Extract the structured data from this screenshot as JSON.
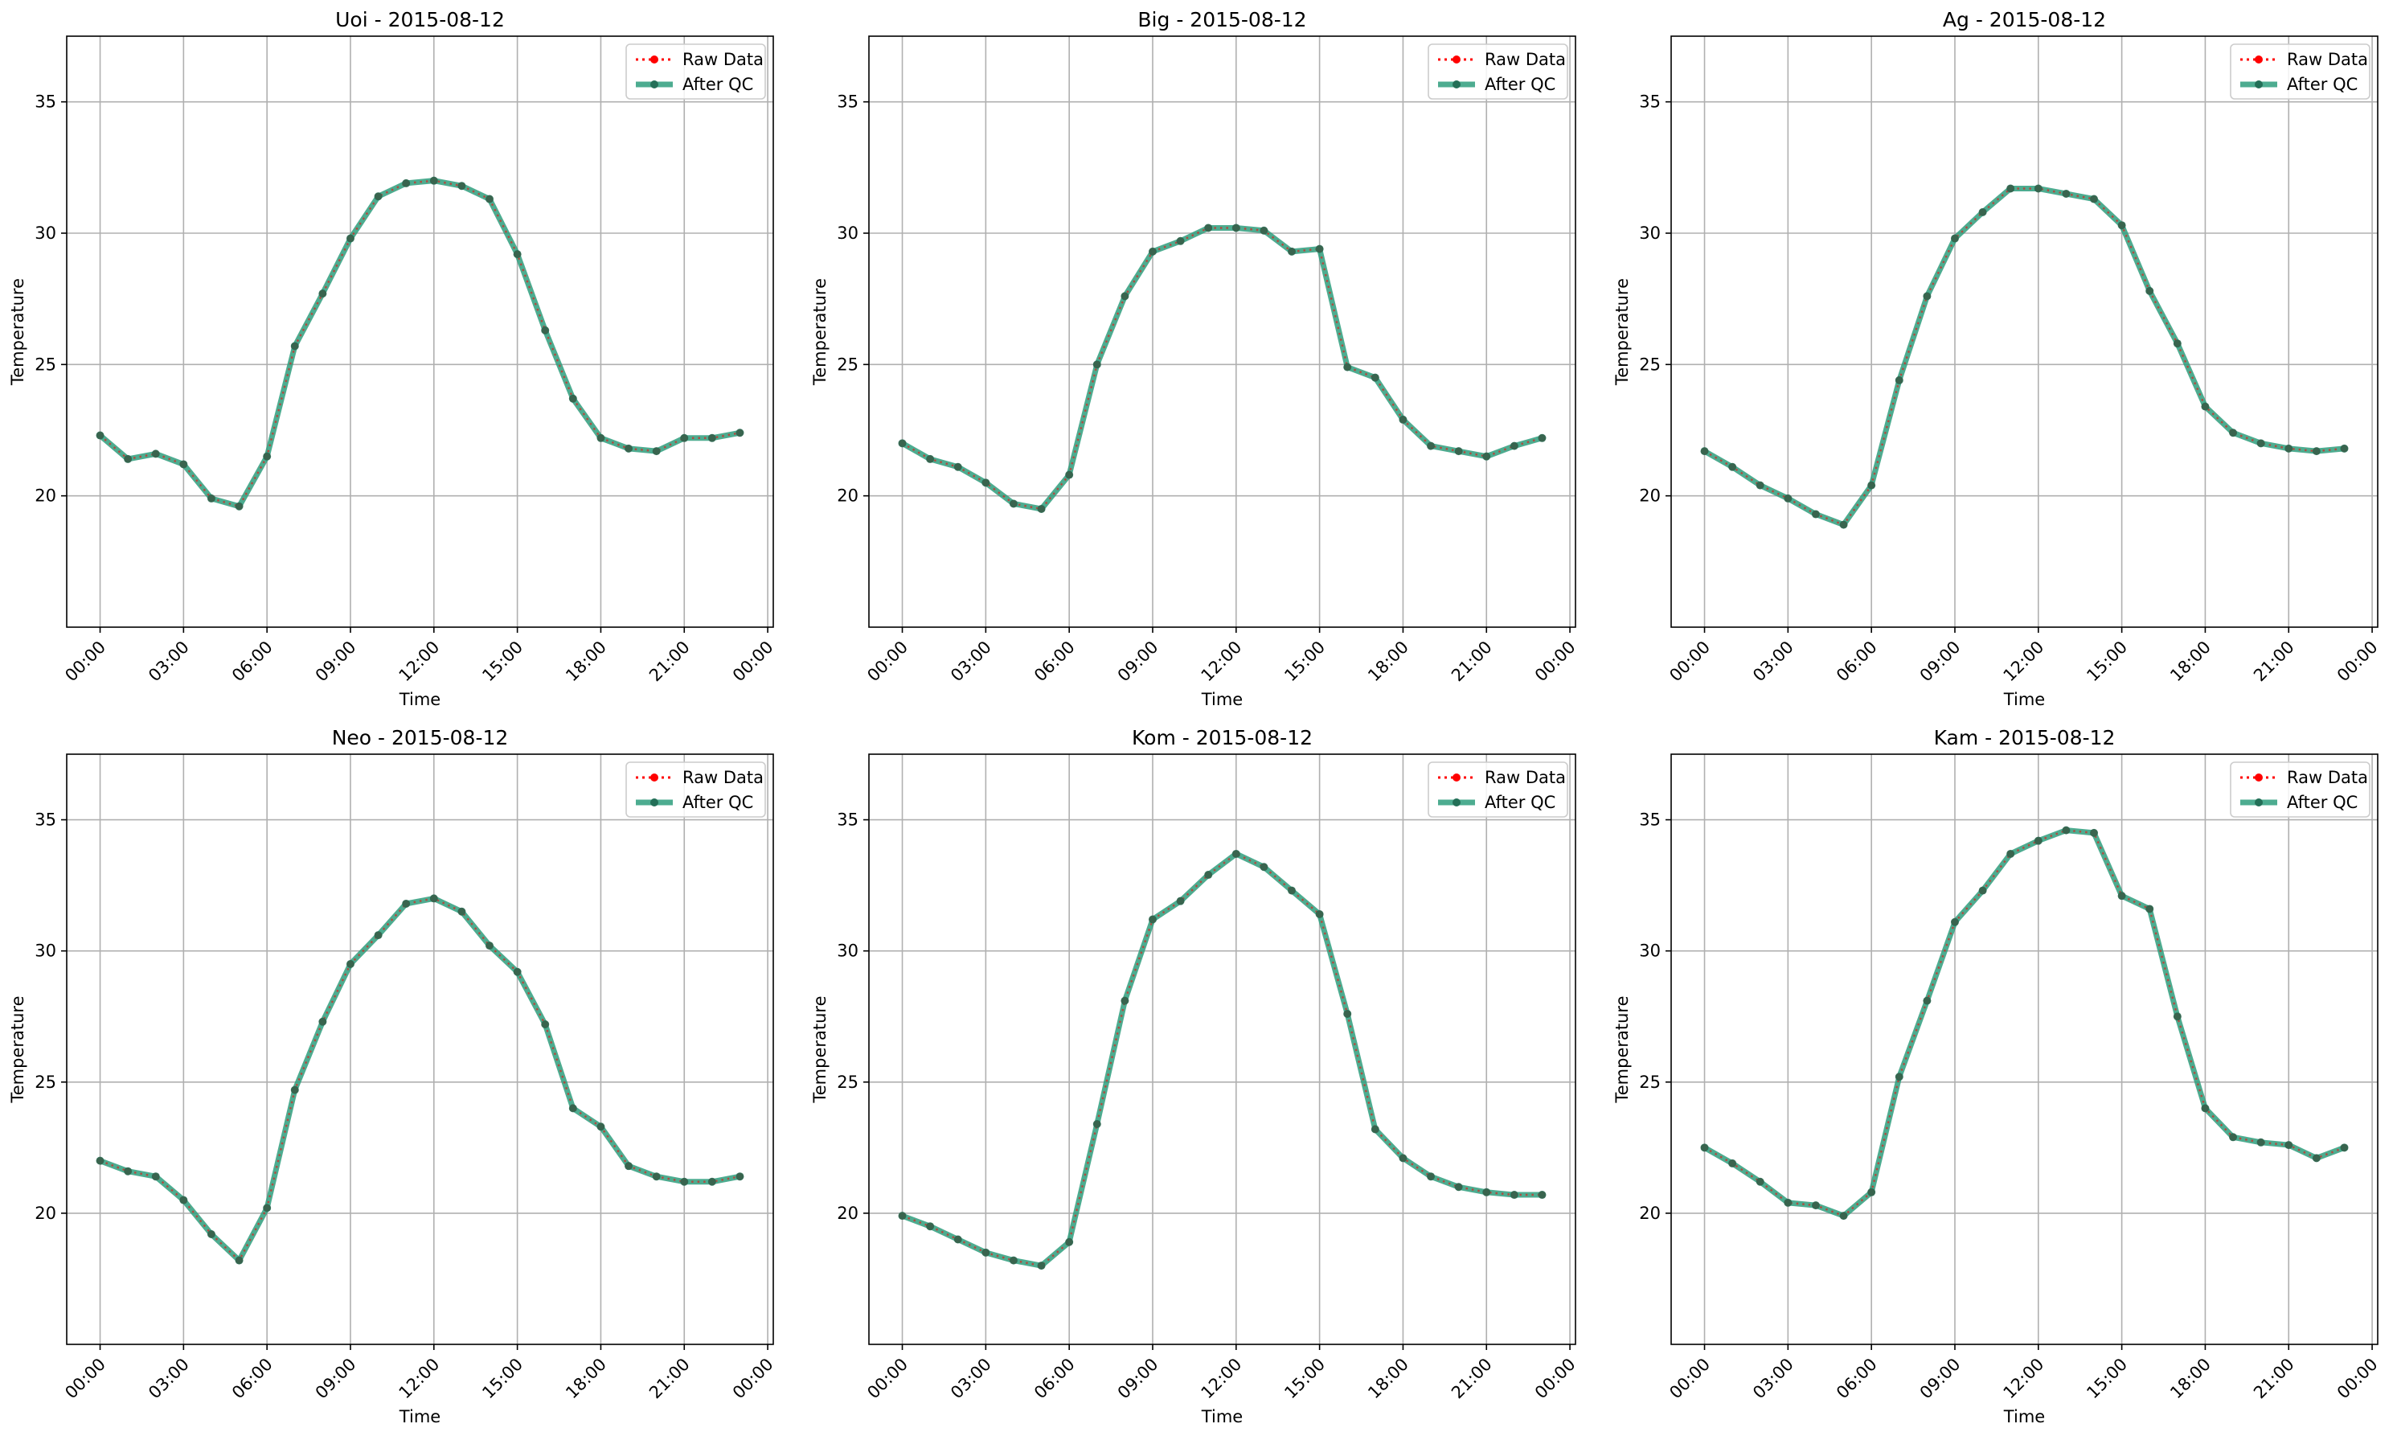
{
  "chart_data": [
    {
      "type": "line",
      "title": "Uoi - 2015-08-12",
      "xlabel": "Time",
      "ylabel": "Temperature",
      "ylim": [
        15.0,
        37.5
      ],
      "yticks": [
        20,
        25,
        30,
        35
      ],
      "xticks": [
        "00:00",
        "03:00",
        "06:00",
        "09:00",
        "12:00",
        "15:00",
        "18:00",
        "21:00",
        "00:00"
      ],
      "grid": true,
      "legend_position": "top-right",
      "x": [
        "00:00",
        "01:00",
        "02:00",
        "03:00",
        "04:00",
        "05:00",
        "06:00",
        "07:00",
        "08:00",
        "09:00",
        "10:00",
        "11:00",
        "12:00",
        "13:00",
        "14:00",
        "15:00",
        "16:00",
        "17:00",
        "18:00",
        "19:00",
        "20:00",
        "21:00",
        "22:00",
        "23:00"
      ],
      "series": [
        {
          "name": "Raw Data",
          "color": "#ff0000",
          "values": [
            22.3,
            21.4,
            21.6,
            21.2,
            19.9,
            19.6,
            21.5,
            25.7,
            27.7,
            29.8,
            31.4,
            31.9,
            32.0,
            31.8,
            31.3,
            29.2,
            26.3,
            23.7,
            22.2,
            21.8,
            21.7,
            22.2,
            22.2,
            22.4
          ]
        },
        {
          "name": "After QC",
          "color": "#2e9e7d",
          "values": [
            22.3,
            21.4,
            21.6,
            21.2,
            19.9,
            19.6,
            21.5,
            25.7,
            27.7,
            29.8,
            31.4,
            31.9,
            32.0,
            31.8,
            31.3,
            29.2,
            26.3,
            23.7,
            22.2,
            21.8,
            21.7,
            22.2,
            22.2,
            22.4
          ]
        }
      ]
    },
    {
      "type": "line",
      "title": "Big - 2015-08-12",
      "xlabel": "Time",
      "ylabel": "Temperature",
      "ylim": [
        15.0,
        37.5
      ],
      "yticks": [
        20,
        25,
        30,
        35
      ],
      "xticks": [
        "00:00",
        "03:00",
        "06:00",
        "09:00",
        "12:00",
        "15:00",
        "18:00",
        "21:00",
        "00:00"
      ],
      "grid": true,
      "legend_position": "top-right",
      "x": [
        "00:00",
        "01:00",
        "02:00",
        "03:00",
        "04:00",
        "05:00",
        "06:00",
        "07:00",
        "08:00",
        "09:00",
        "10:00",
        "11:00",
        "12:00",
        "13:00",
        "14:00",
        "15:00",
        "16:00",
        "17:00",
        "18:00",
        "19:00",
        "20:00",
        "21:00",
        "22:00",
        "23:00"
      ],
      "series": [
        {
          "name": "Raw Data",
          "color": "#ff0000",
          "values": [
            22.0,
            21.4,
            21.1,
            20.5,
            19.7,
            19.5,
            20.8,
            25.0,
            27.6,
            29.3,
            29.7,
            30.2,
            30.2,
            30.1,
            29.3,
            29.4,
            24.9,
            24.5,
            22.9,
            21.9,
            21.7,
            21.5,
            21.9,
            22.2
          ]
        },
        {
          "name": "After QC",
          "color": "#2e9e7d",
          "values": [
            22.0,
            21.4,
            21.1,
            20.5,
            19.7,
            19.5,
            20.8,
            25.0,
            27.6,
            29.3,
            29.7,
            30.2,
            30.2,
            30.1,
            29.3,
            29.4,
            24.9,
            24.5,
            22.9,
            21.9,
            21.7,
            21.5,
            21.9,
            22.2
          ]
        }
      ]
    },
    {
      "type": "line",
      "title": "Ag - 2015-08-12",
      "xlabel": "Time",
      "ylabel": "Temperature",
      "ylim": [
        15.0,
        37.5
      ],
      "yticks": [
        20,
        25,
        30,
        35
      ],
      "xticks": [
        "00:00",
        "03:00",
        "06:00",
        "09:00",
        "12:00",
        "15:00",
        "18:00",
        "21:00",
        "00:00"
      ],
      "grid": true,
      "legend_position": "top-right",
      "x": [
        "00:00",
        "01:00",
        "02:00",
        "03:00",
        "04:00",
        "05:00",
        "06:00",
        "07:00",
        "08:00",
        "09:00",
        "10:00",
        "11:00",
        "12:00",
        "13:00",
        "14:00",
        "15:00",
        "16:00",
        "17:00",
        "18:00",
        "19:00",
        "20:00",
        "21:00",
        "22:00",
        "23:00"
      ],
      "series": [
        {
          "name": "Raw Data",
          "color": "#ff0000",
          "values": [
            21.7,
            21.1,
            20.4,
            19.9,
            19.3,
            18.9,
            20.4,
            24.4,
            27.6,
            29.8,
            30.8,
            31.7,
            31.7,
            31.5,
            31.3,
            30.3,
            27.8,
            25.8,
            23.4,
            22.4,
            22.0,
            21.8,
            21.7,
            21.8
          ]
        },
        {
          "name": "After QC",
          "color": "#2e9e7d",
          "values": [
            21.7,
            21.1,
            20.4,
            19.9,
            19.3,
            18.9,
            20.4,
            24.4,
            27.6,
            29.8,
            30.8,
            31.7,
            31.7,
            31.5,
            31.3,
            30.3,
            27.8,
            25.8,
            23.4,
            22.4,
            22.0,
            21.8,
            21.7,
            21.8
          ]
        }
      ]
    },
    {
      "type": "line",
      "title": "Neo - 2015-08-12",
      "xlabel": "Time",
      "ylabel": "Temperature",
      "ylim": [
        15.0,
        37.5
      ],
      "yticks": [
        20,
        25,
        30,
        35
      ],
      "xticks": [
        "00:00",
        "03:00",
        "06:00",
        "09:00",
        "12:00",
        "15:00",
        "18:00",
        "21:00",
        "00:00"
      ],
      "grid": true,
      "legend_position": "top-right",
      "x": [
        "00:00",
        "01:00",
        "02:00",
        "03:00",
        "04:00",
        "05:00",
        "06:00",
        "07:00",
        "08:00",
        "09:00",
        "10:00",
        "11:00",
        "12:00",
        "13:00",
        "14:00",
        "15:00",
        "16:00",
        "17:00",
        "18:00",
        "19:00",
        "20:00",
        "21:00",
        "22:00",
        "23:00"
      ],
      "series": [
        {
          "name": "Raw Data",
          "color": "#ff0000",
          "values": [
            22.0,
            21.6,
            21.4,
            20.5,
            19.2,
            18.2,
            20.2,
            24.7,
            27.3,
            29.5,
            30.6,
            31.8,
            32.0,
            31.5,
            30.2,
            29.2,
            27.2,
            24.0,
            23.3,
            21.8,
            21.4,
            21.2,
            21.2,
            21.4
          ]
        },
        {
          "name": "After QC",
          "color": "#2e9e7d",
          "values": [
            22.0,
            21.6,
            21.4,
            20.5,
            19.2,
            18.2,
            20.2,
            24.7,
            27.3,
            29.5,
            30.6,
            31.8,
            32.0,
            31.5,
            30.2,
            29.2,
            27.2,
            24.0,
            23.3,
            21.8,
            21.4,
            21.2,
            21.2,
            21.4
          ]
        }
      ]
    },
    {
      "type": "line",
      "title": "Kom - 2015-08-12",
      "xlabel": "Time",
      "ylabel": "Temperature",
      "ylim": [
        15.0,
        37.5
      ],
      "yticks": [
        20,
        25,
        30,
        35
      ],
      "xticks": [
        "00:00",
        "03:00",
        "06:00",
        "09:00",
        "12:00",
        "15:00",
        "18:00",
        "21:00",
        "00:00"
      ],
      "grid": true,
      "legend_position": "top-right",
      "x": [
        "00:00",
        "01:00",
        "02:00",
        "03:00",
        "04:00",
        "05:00",
        "06:00",
        "07:00",
        "08:00",
        "09:00",
        "10:00",
        "11:00",
        "12:00",
        "13:00",
        "14:00",
        "15:00",
        "16:00",
        "17:00",
        "18:00",
        "19:00",
        "20:00",
        "21:00",
        "22:00",
        "23:00"
      ],
      "series": [
        {
          "name": "Raw Data",
          "color": "#ff0000",
          "values": [
            19.9,
            19.5,
            19.0,
            18.5,
            18.2,
            18.0,
            18.9,
            23.4,
            28.1,
            31.2,
            31.9,
            32.9,
            33.7,
            33.2,
            32.3,
            31.4,
            27.6,
            23.2,
            22.1,
            21.4,
            21.0,
            20.8,
            20.7,
            20.7
          ]
        },
        {
          "name": "After QC",
          "color": "#2e9e7d",
          "values": [
            19.9,
            19.5,
            19.0,
            18.5,
            18.2,
            18.0,
            18.9,
            23.4,
            28.1,
            31.2,
            31.9,
            32.9,
            33.7,
            33.2,
            32.3,
            31.4,
            27.6,
            23.2,
            22.1,
            21.4,
            21.0,
            20.8,
            20.7,
            20.7
          ]
        }
      ]
    },
    {
      "type": "line",
      "title": "Kam - 2015-08-12",
      "xlabel": "Time",
      "ylabel": "Temperature",
      "ylim": [
        15.0,
        37.5
      ],
      "yticks": [
        20,
        25,
        30,
        35
      ],
      "xticks": [
        "00:00",
        "03:00",
        "06:00",
        "09:00",
        "12:00",
        "15:00",
        "18:00",
        "21:00",
        "00:00"
      ],
      "grid": true,
      "legend_position": "top-right",
      "x": [
        "00:00",
        "01:00",
        "02:00",
        "03:00",
        "04:00",
        "05:00",
        "06:00",
        "07:00",
        "08:00",
        "09:00",
        "10:00",
        "11:00",
        "12:00",
        "13:00",
        "14:00",
        "15:00",
        "16:00",
        "17:00",
        "18:00",
        "19:00",
        "20:00",
        "21:00",
        "22:00",
        "23:00"
      ],
      "series": [
        {
          "name": "Raw Data",
          "color": "#ff0000",
          "values": [
            22.5,
            21.9,
            21.2,
            20.4,
            20.3,
            19.9,
            20.8,
            25.2,
            28.1,
            31.1,
            32.3,
            33.7,
            34.2,
            34.6,
            34.5,
            32.1,
            31.6,
            27.5,
            24.0,
            22.9,
            22.7,
            22.6,
            22.1,
            22.5
          ]
        },
        {
          "name": "After QC",
          "color": "#2e9e7d",
          "values": [
            22.5,
            21.9,
            21.2,
            20.4,
            20.3,
            19.9,
            20.8,
            25.2,
            28.1,
            31.1,
            32.3,
            33.7,
            34.2,
            34.6,
            34.5,
            32.1,
            31.6,
            27.5,
            24.0,
            22.9,
            22.7,
            22.6,
            22.1,
            22.5
          ]
        }
      ]
    }
  ]
}
